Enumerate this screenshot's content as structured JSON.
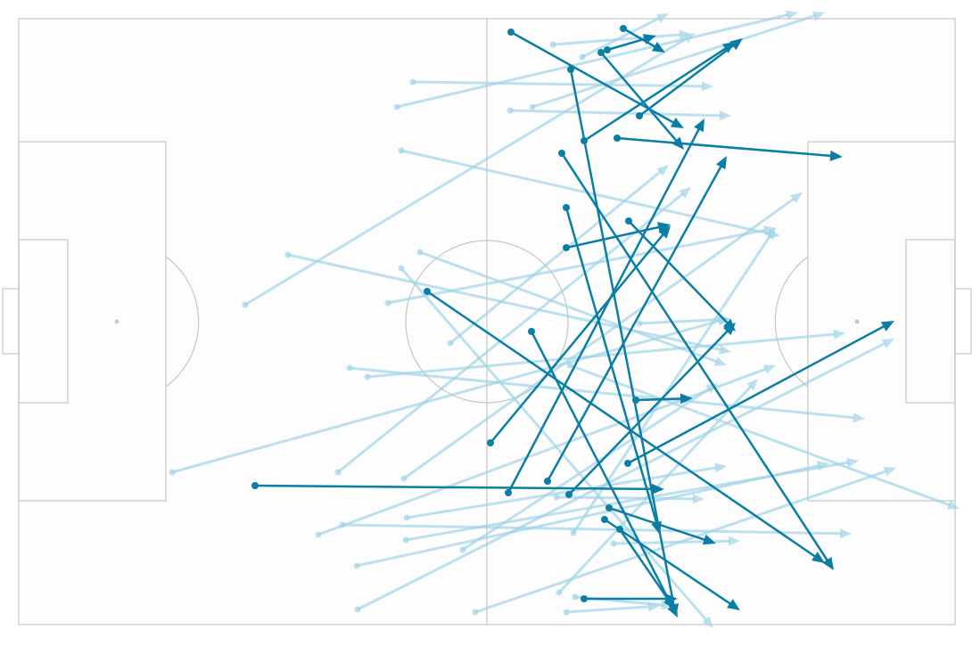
{
  "chart_data": {
    "type": "pass-map",
    "xlim": [
      0,
      105
    ],
    "ylim": [
      0,
      68
    ],
    "series": [
      {
        "color": "#9fd3e6",
        "x": [
          59.9,
          63.2,
          44.2,
          42.4,
          55.1,
          57.6,
          42.9,
          25.4,
          30.2,
          45.0,
          42.9,
          41.4,
          48.4,
          37.1,
          39.1,
          17.2,
          35.8,
          43.2,
          61.8,
          69.6,
          33.6,
          36.3,
          43.5,
          43.4,
          37.9,
          38.0,
          51.2,
          49.8,
          62.2,
          60.6,
          62.4,
          61.4,
          66.7,
          60.3
        ],
        "y": [
          2.9,
          4.3,
          7.1,
          9.9,
          10.3,
          9.9,
          14.8,
          32.1,
          26.5,
          26.2,
          28.0,
          31.9,
          36.4,
          39.2,
          40.2,
          50.9,
          50.9,
          51.6,
          38.9,
          34.2,
          57.9,
          56.8,
          56.0,
          58.5,
          61.4,
          66.3,
          66.6,
          59.6,
          57.7,
          64.4,
          64.9,
          66.6,
          58.9,
          53.7
        ],
        "x_end": [
          75.4,
          72.9,
          77.9,
          87.4,
          79.9,
          90.4,
          85.4,
          75.9,
          79.9,
          79.4,
          77.9,
          84.9,
          72.9,
          94.9,
          92.7,
          79.7,
          75.4,
          87.9,
          105.5,
          79.9,
          84.9,
          93.4,
          79.4,
          94.2,
          90.9,
          98.2,
          98.4,
          78.4,
          84.9,
          82.9,
          73.4,
          71.9,
          80.9,
          76.9
        ],
        "y_end": [
          1.7,
          -0.6,
          7.6,
          -0.7,
          10.9,
          -0.7,
          24.4,
          1.6,
          37.4,
          38.9,
          68.4,
          23.5,
          16.4,
          44.9,
          35.3,
          33.6,
          18.9,
          19.5,
          55.0,
          33.7,
          38.9,
          57.8,
          50.2,
          49.6,
          49.9,
          35.9,
          50.4,
          40.9,
          23.4,
          40.4,
          65.9,
          65.9,
          58.6,
          53.9
        ]
      },
      {
        "color": "#0a7ea4",
        "x": [
          55.2,
          67.8,
          66.0,
          65.3,
          61.9,
          69.6,
          63.4,
          67.1,
          60.9,
          61.4,
          61.4,
          68.4,
          45.8,
          57.5,
          52.9,
          59.3,
          54.9,
          61.7,
          68.3,
          26.5,
          69.2,
          66.2,
          65.7,
          67.4,
          63.4
        ],
        "y": [
          1.5,
          1.1,
          3.5,
          3.8,
          5.7,
          10.9,
          13.7,
          13.4,
          15.1,
          21.2,
          25.7,
          22.7,
          30.6,
          35.1,
          47.6,
          51.9,
          53.2,
          53.4,
          49.9,
          52.4,
          42.8,
          54.9,
          56.2,
          57.3,
          65.1
        ],
        "x_end": [
          74.6,
          72.5,
          71.5,
          74.6,
          73.7,
          81.2,
          80.4,
          92.4,
          91.4,
          71.9,
          73.1,
          80.4,
          90.4,
          73.9,
          73.1,
          79.4,
          76.9,
          80.4,
          98.2,
          72.4,
          75.6,
          78.2,
          80.9,
          73.6,
          73.9
        ],
        "y_end": [
          12.3,
          3.8,
          1.9,
          14.7,
          67.1,
          2.2,
          2.6,
          15.5,
          61.9,
          57.9,
          23.1,
          35.1,
          61.1,
          67.2,
          23.2,
          15.4,
          11.2,
          34.1,
          33.9,
          52.8,
          42.6,
          58.9,
          66.4,
          66.3,
          65.1
        ]
      }
    ]
  }
}
